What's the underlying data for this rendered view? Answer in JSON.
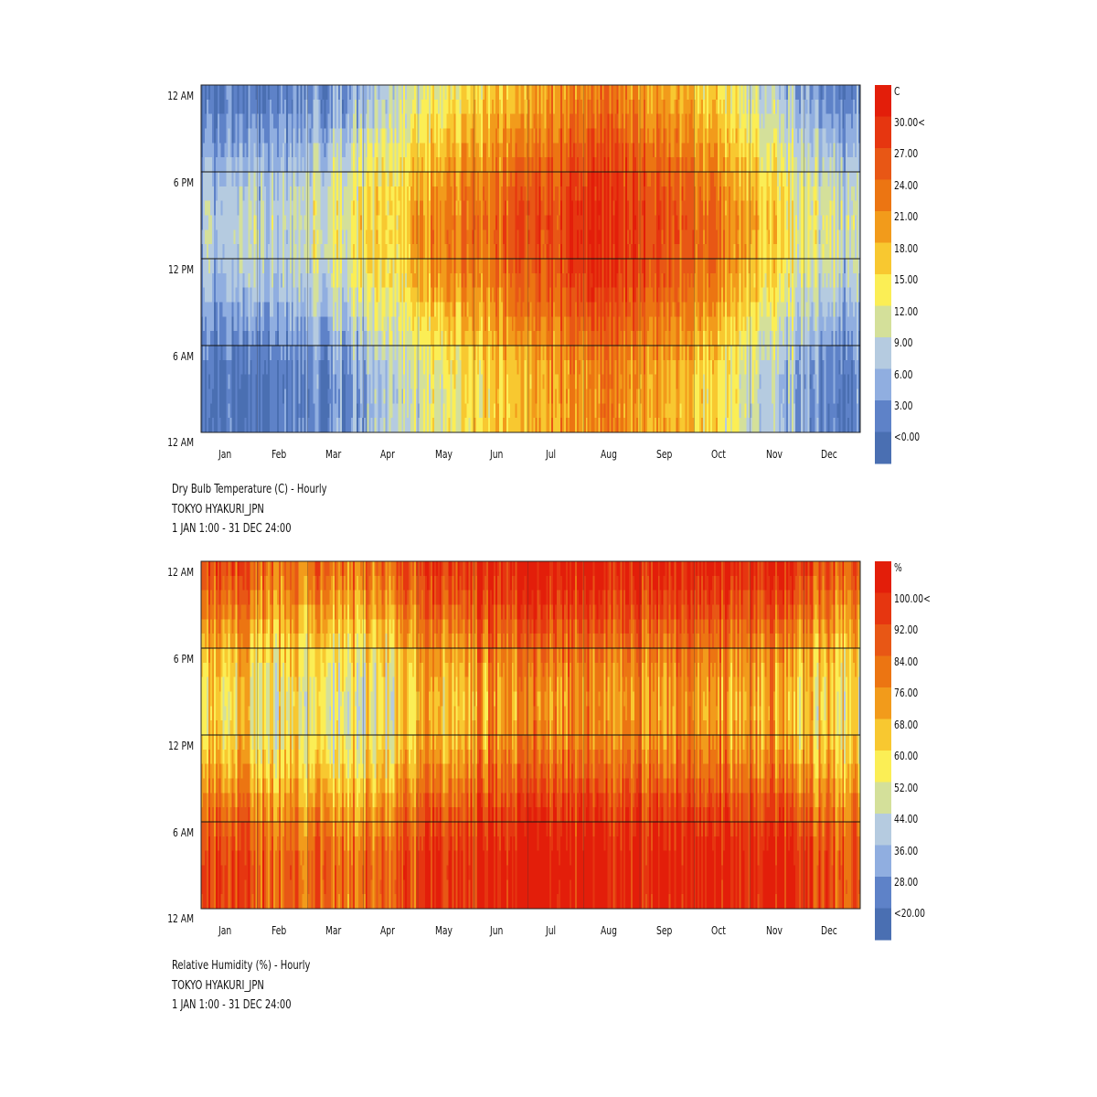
{
  "chart_data": [
    {
      "type": "heatmap",
      "title": "Dry Bulb Temperature (C) - Hourly",
      "location": "TOKYO HYAKURI_JPN",
      "period": "1 JAN 1:00 - 31 DEC 24:00",
      "unit": "C",
      "x_tick_labels": [
        "Jan",
        "Feb",
        "Mar",
        "Apr",
        "May",
        "Jun",
        "Jul",
        "Aug",
        "Sep",
        "Oct",
        "Nov",
        "Dec"
      ],
      "y_tick_labels": [
        "12 AM",
        "6 PM",
        "12 PM",
        "6 AM",
        "12 AM"
      ],
      "legend_labels": [
        "30.00<",
        "27.00",
        "24.00",
        "21.00",
        "18.00",
        "15.00",
        "12.00",
        "9.00",
        "6.00",
        "3.00",
        "<0.00"
      ],
      "legend_min": 0,
      "legend_max": 30,
      "monthly_mean": [
        3,
        4,
        7,
        12,
        17,
        20,
        24,
        26,
        22,
        17,
        11,
        5
      ],
      "daily_amplitude": 4.5,
      "day_noise": 3.5
    },
    {
      "type": "heatmap",
      "title": "Relative Humidity (%) - Hourly",
      "location": "TOKYO HYAKURI_JPN",
      "period": "1 JAN 1:00 - 31 DEC 24:00",
      "unit": "%",
      "x_tick_labels": [
        "Jan",
        "Feb",
        "Mar",
        "Apr",
        "May",
        "Jun",
        "Jul",
        "Aug",
        "Sep",
        "Oct",
        "Nov",
        "Dec"
      ],
      "y_tick_labels": [
        "12 AM",
        "6 PM",
        "12 PM",
        "6 AM",
        "12 AM"
      ],
      "legend_labels": [
        "100.00<",
        "92.00",
        "84.00",
        "76.00",
        "68.00",
        "60.00",
        "52.00",
        "44.00",
        "36.00",
        "28.00",
        "<20.00"
      ],
      "legend_min": 20,
      "legend_max": 100,
      "monthly_mean": [
        74,
        70,
        68,
        72,
        84,
        90,
        92,
        90,
        88,
        87,
        84,
        75
      ],
      "daily_amplitude": 16,
      "day_noise": 14
    }
  ],
  "colors": [
    "#4a6fb2",
    "#5e82c8",
    "#90aee0",
    "#b5cbe0",
    "#d4e09a",
    "#fbee55",
    "#f8c830",
    "#f29b1b",
    "#ec7512",
    "#e85715",
    "#e63610",
    "#e31e0a"
  ]
}
